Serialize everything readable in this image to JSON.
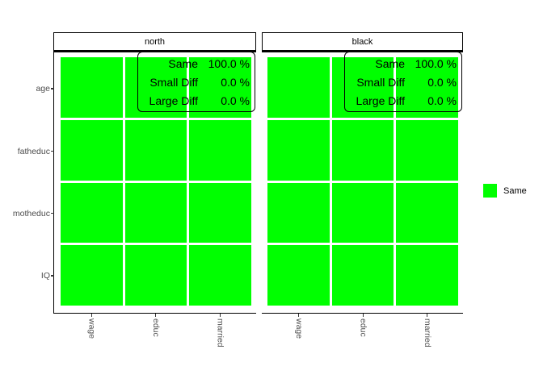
{
  "window": {
    "background": "#ffffff"
  },
  "colors": {
    "tile_green": "#00ff00",
    "axis_text": "#4d4d4d",
    "strip_text": "#000000",
    "annotation_text": "#000000",
    "axis_line": "#000000",
    "tick": "#333333"
  },
  "chart_data": {
    "type": "heatmap",
    "title": "",
    "x_categories": [
      "wage",
      "educ",
      "married"
    ],
    "y_categories": [
      "age",
      "fatheduc",
      "motheduc",
      "IQ"
    ],
    "cell_color_map": {
      "Same": "#00ff00"
    },
    "facets": [
      {
        "label": "north",
        "annotation": {
          "rows": [
            {
              "label": "Same",
              "value": "100.0 %"
            },
            {
              "label": "Small Diff",
              "value": "0.0 %"
            },
            {
              "label": "Large Diff",
              "value": "0.0 %"
            }
          ]
        },
        "cells": [
          [
            "Same",
            "Same",
            "Same"
          ],
          [
            "Same",
            "Same",
            "Same"
          ],
          [
            "Same",
            "Same",
            "Same"
          ],
          [
            "Same",
            "Same",
            "Same"
          ]
        ]
      },
      {
        "label": "black",
        "annotation": {
          "rows": [
            {
              "label": "Same",
              "value": "100.0 %"
            },
            {
              "label": "Small Diff",
              "value": "0.0 %"
            },
            {
              "label": "Large Diff",
              "value": "0.0 %"
            }
          ]
        },
        "cells": [
          [
            "Same",
            "Same",
            "Same"
          ],
          [
            "Same",
            "Same",
            "Same"
          ],
          [
            "Same",
            "Same",
            "Same"
          ],
          [
            "Same",
            "Same",
            "Same"
          ]
        ]
      }
    ],
    "legend": {
      "position": "right",
      "entries": [
        {
          "label": "Same",
          "color": "#00ff00"
        }
      ]
    },
    "layout_hints": {
      "grid": "off",
      "facet_count": 2,
      "values_all_percent_same": 100.0
    }
  }
}
